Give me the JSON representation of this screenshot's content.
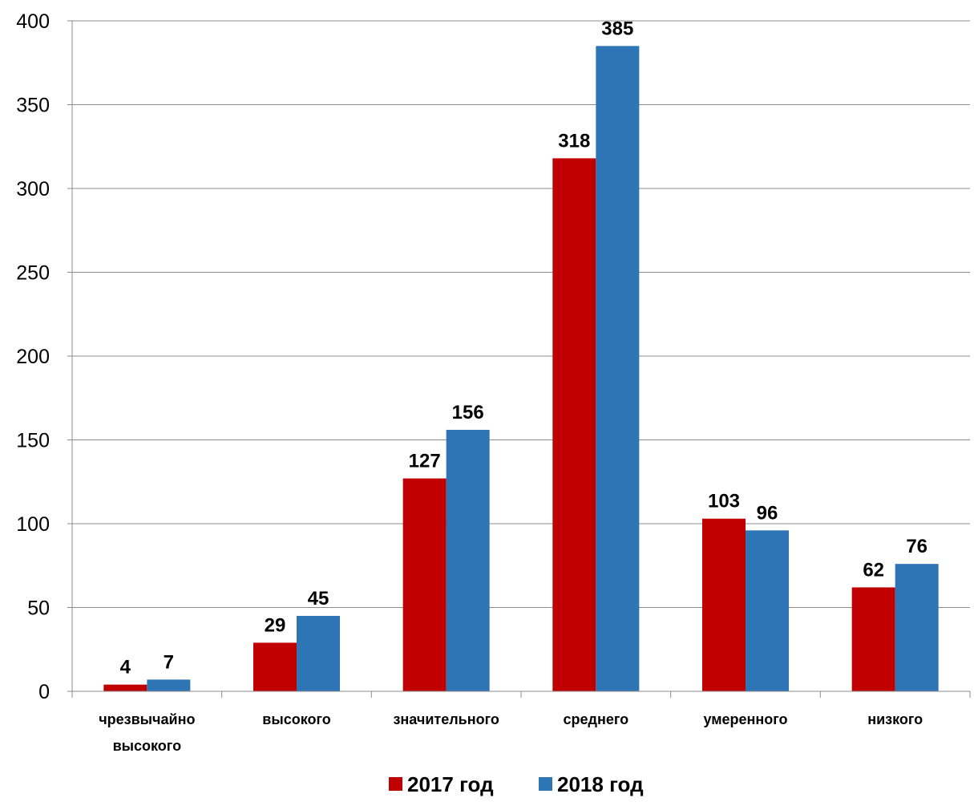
{
  "chart_data": {
    "type": "bar",
    "categories": [
      [
        "чрезвычайно",
        "высокого"
      ],
      [
        "высокого"
      ],
      [
        "значительного"
      ],
      [
        "среднего"
      ],
      [
        "умеренного"
      ],
      [
        "низкого"
      ]
    ],
    "series": [
      {
        "name": "2017 год",
        "color": "#c00000",
        "values": [
          4,
          29,
          127,
          318,
          103,
          62
        ]
      },
      {
        "name": "2018 год",
        "color": "#2e75b6",
        "values": [
          7,
          45,
          156,
          385,
          96,
          76
        ]
      }
    ],
    "ylim": [
      0,
      400
    ],
    "yticks": [
      "0",
      "50",
      "100",
      "150",
      "200",
      "250",
      "300",
      "350",
      "400"
    ],
    "grid": true,
    "legend_position": "bottom"
  }
}
